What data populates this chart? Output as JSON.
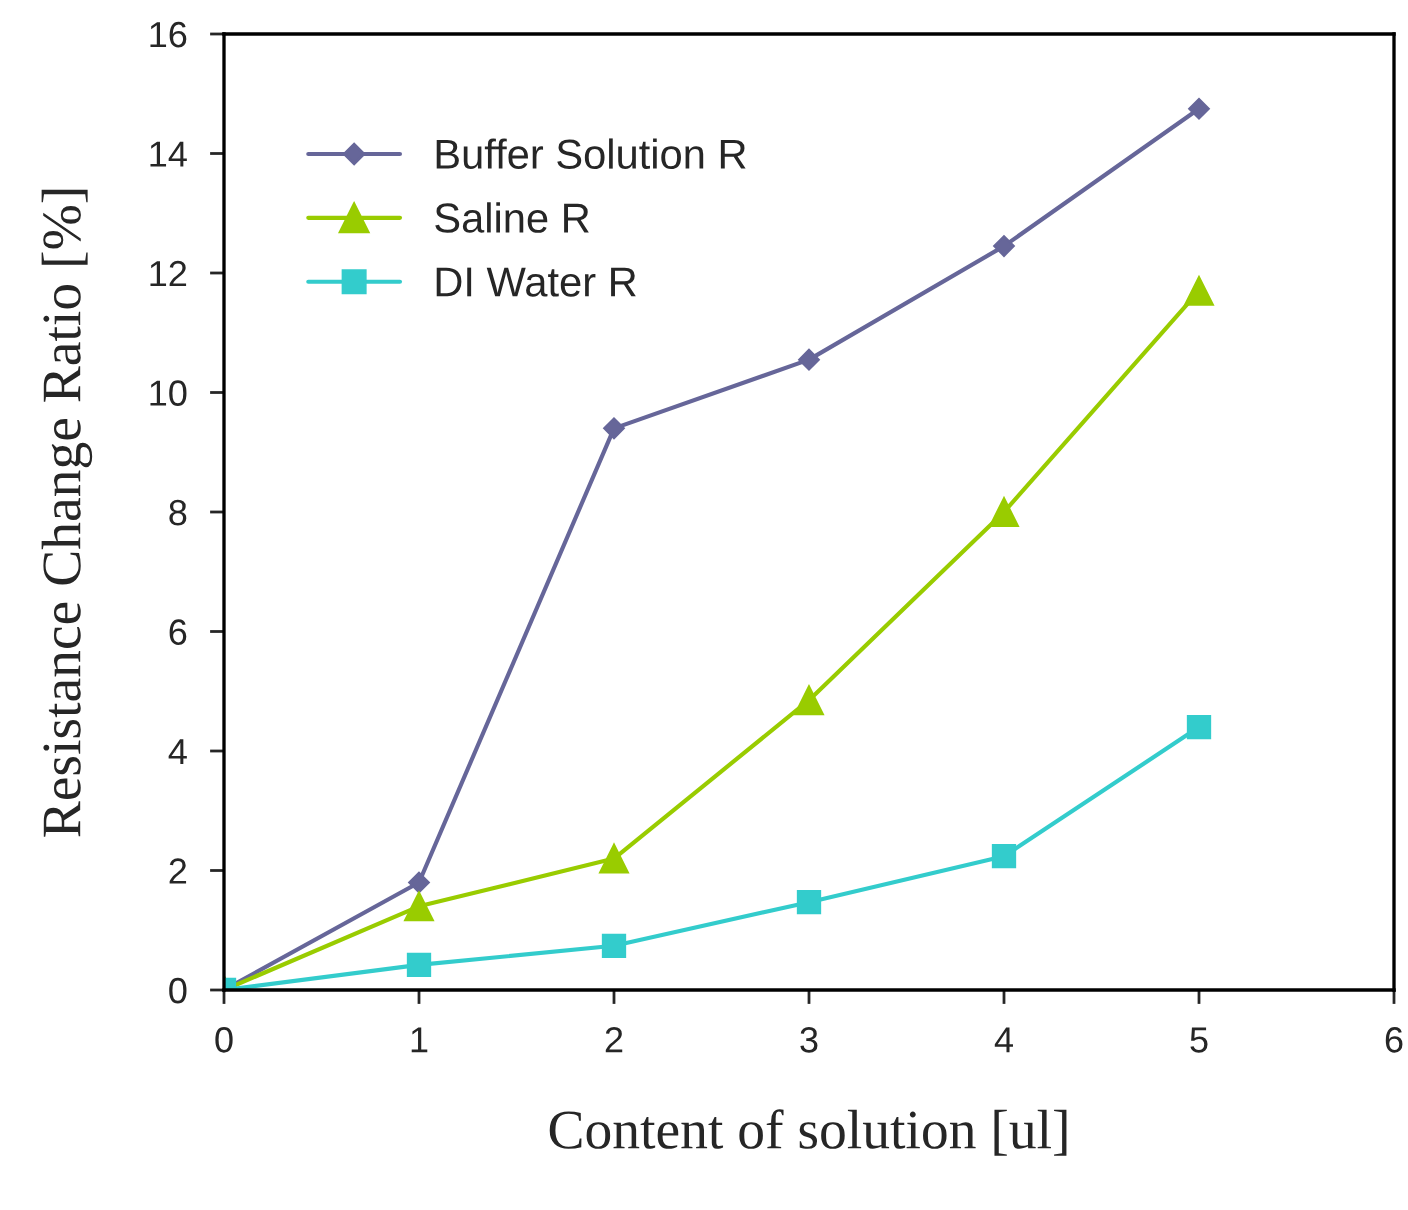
{
  "chart_data": {
    "type": "line",
    "xlabel": "Content of solution [ul]",
    "ylabel": "Resistance Change Ratio [%]",
    "x": [
      0,
      1,
      2,
      3,
      4,
      5
    ],
    "series": [
      {
        "name": "Buffer Solution R",
        "color": "#666699",
        "marker": "diamond",
        "values": [
          0,
          1.8,
          9.4,
          10.55,
          12.45,
          14.75
        ]
      },
      {
        "name": "Saline R",
        "color": "#99cc00",
        "marker": "triangle",
        "values": [
          0,
          1.4,
          2.2,
          4.85,
          8.0,
          11.7
        ]
      },
      {
        "name": "DI Water R",
        "color": "#33cccc",
        "marker": "square",
        "values": [
          0,
          0.42,
          0.74,
          1.47,
          2.24,
          4.4
        ]
      }
    ],
    "xlim": [
      0,
      6
    ],
    "xticks": [
      0,
      1,
      2,
      3,
      4,
      5,
      6
    ],
    "ylim": [
      0,
      16
    ],
    "yticks": [
      0,
      2,
      4,
      6,
      8,
      10,
      12,
      14,
      16
    ],
    "grid": false,
    "legend": "top left",
    "line_style": "solid"
  }
}
